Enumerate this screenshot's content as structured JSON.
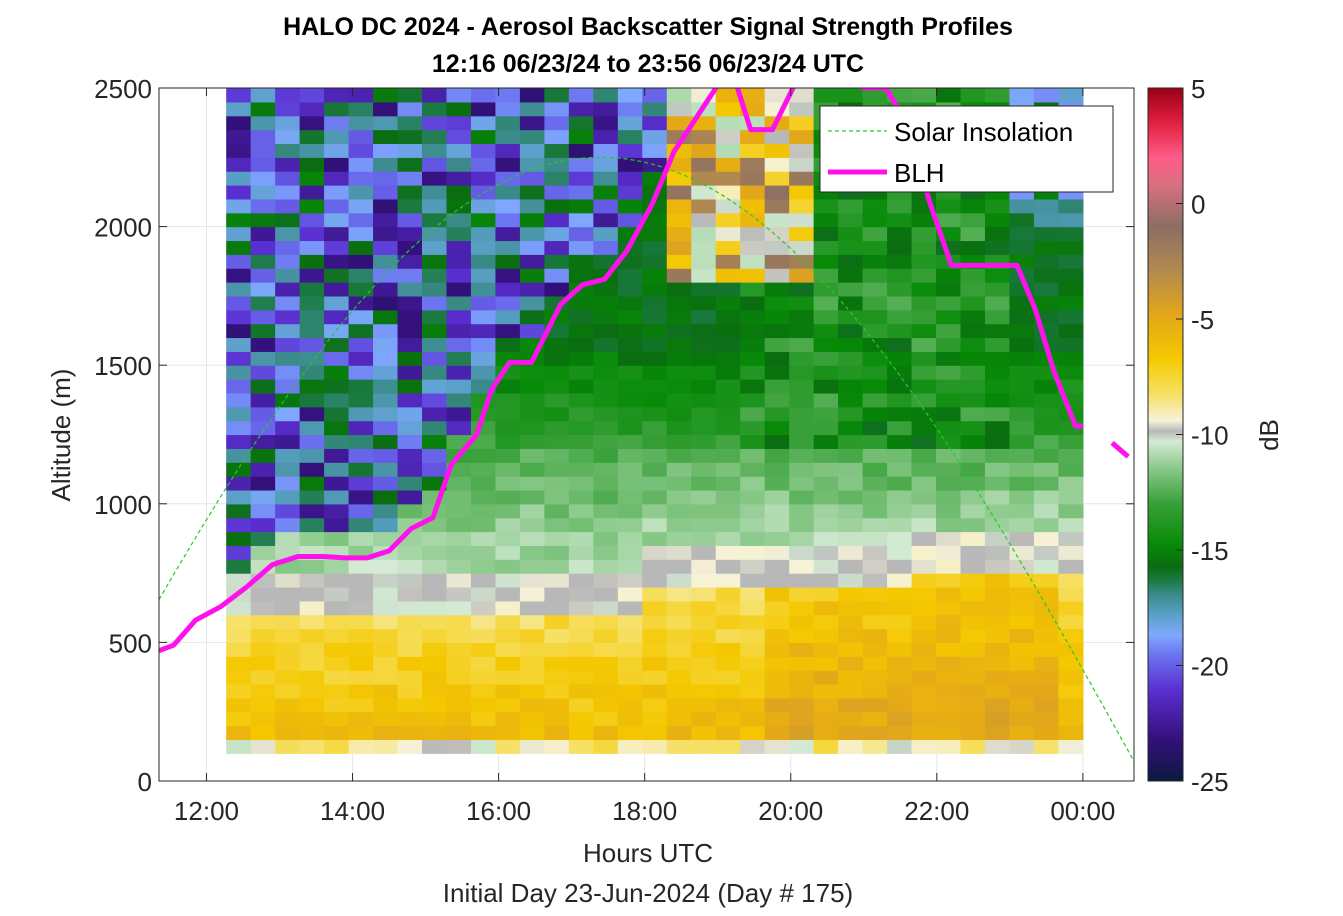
{
  "figure": {
    "title_line1": "HALO DC 2024 - Aerosol Backscatter Signal Strength Profiles",
    "title_line2": "12:16 06/23/24 to 23:56 06/23/24  UTC",
    "caption": "Initial Day 23-Jun-2024 (Day # 175)"
  },
  "chart_data": {
    "type": "heatmap",
    "title": "HALO DC 2024 - Aerosol Backscatter Signal Strength Profiles",
    "subtitle": "12:16 06/23/24 to 23:56 06/23/24  UTC",
    "xlabel": "Hours UTC",
    "ylabel": "Altitude (m)",
    "colorbar_label": "dB",
    "xlim_hours": [
      11.35,
      24.7
    ],
    "x_ticks": [
      12,
      14,
      16,
      18,
      20,
      22,
      24
    ],
    "x_tick_labels": [
      "12:00",
      "14:00",
      "16:00",
      "18:00",
      "20:00",
      "22:00",
      "00:00"
    ],
    "ylim": [
      0,
      2500
    ],
    "y_ticks": [
      0,
      500,
      1000,
      1500,
      2000,
      2500
    ],
    "y_tick_labels": [
      "0",
      "500",
      "1000",
      "1500",
      "2000",
      "2500"
    ],
    "clim": [
      -25,
      5
    ],
    "colorbar_ticks": [
      5,
      0,
      -5,
      -10,
      -15,
      -20,
      -25
    ],
    "colorbar_tick_labels": [
      "5",
      "0",
      "-5",
      "-10",
      "-15",
      "-20",
      "-25"
    ],
    "grid": true,
    "legend_position": "top-right",
    "legend": [
      {
        "label": "Solar Insolation",
        "color": "#22cc22",
        "style": "dashed"
      },
      {
        "label": "BLH",
        "color": "#ff11ee",
        "style": "solid"
      }
    ],
    "heatmap": {
      "time_start_hours": 12.27,
      "time_end_hours": 24.0,
      "time_columns": 35,
      "altitude_bins_m": [
        100,
        150,
        200,
        250,
        300,
        350,
        400,
        450,
        500,
        550,
        600,
        650,
        700,
        750,
        800,
        850,
        900,
        950,
        1000,
        1050,
        1100,
        1150,
        1200,
        1250,
        1300,
        1350,
        1400,
        1450,
        1500,
        1550,
        1600,
        1650,
        1700,
        1750,
        1800,
        1850,
        1900,
        1950,
        2000,
        2050,
        2100,
        2150,
        2200,
        2250,
        2300,
        2350,
        2400,
        2450,
        2500
      ],
      "regions_db": [
        {
          "altitude_m": [
            100,
            150
          ],
          "db": -9.5
        },
        {
          "altitude_m": [
            150,
            650
          ],
          "db": -7
        },
        {
          "altitude_m": [
            650,
            850
          ],
          "db": -9.8
        },
        {
          "altitude_m": [
            850,
            1200
          ],
          "db": -11.5
        },
        {
          "altitude_m": [
            1200,
            1800
          ],
          "db": -15
        },
        {
          "altitude_m": [
            1800,
            2500
          ],
          "db": -18.5
        }
      ]
    },
    "blh": {
      "name": "BLH",
      "x_hours": [
        11.35,
        11.55,
        11.85,
        12.2,
        12.55,
        12.9,
        13.25,
        13.6,
        13.9,
        14.2,
        14.5,
        14.8,
        15.1,
        15.35,
        15.7,
        15.9,
        16.15,
        16.45,
        16.85,
        17.15,
        17.45,
        17.75,
        18.1,
        18.4,
        18.8,
        19.0,
        19.2,
        19.45,
        19.75,
        20.05,
        20.35,
        20.6,
        20.8,
        21.0,
        21.3,
        21.6,
        21.9,
        22.2,
        22.5,
        22.8,
        23.1,
        23.35,
        23.6,
        23.9,
        24.0
      ],
      "y_m": [
        470,
        490,
        580,
        630,
        700,
        780,
        810,
        810,
        805,
        805,
        830,
        910,
        950,
        1140,
        1250,
        1410,
        1510,
        1510,
        1720,
        1790,
        1810,
        1910,
        2080,
        2270,
        2430,
        2510,
        2560,
        2350,
        2350,
        2510,
        2560,
        2560,
        2520,
        2500,
        2500,
        2370,
        2090,
        1860,
        1860,
        1860,
        1860,
        1700,
        1480,
        1280,
        1280
      ],
      "x_hours_tail": [
        24.4,
        24.62
      ],
      "y_m_tail": [
        1220,
        1170
      ]
    },
    "solar_insolation": {
      "name": "Solar Insolation",
      "peak_hour": 17.4,
      "half_width_hours": 7.45,
      "peak_altitude_m": 2250,
      "curve": "2250*cos(pi/2*(h-17.4)/7.45)"
    }
  }
}
